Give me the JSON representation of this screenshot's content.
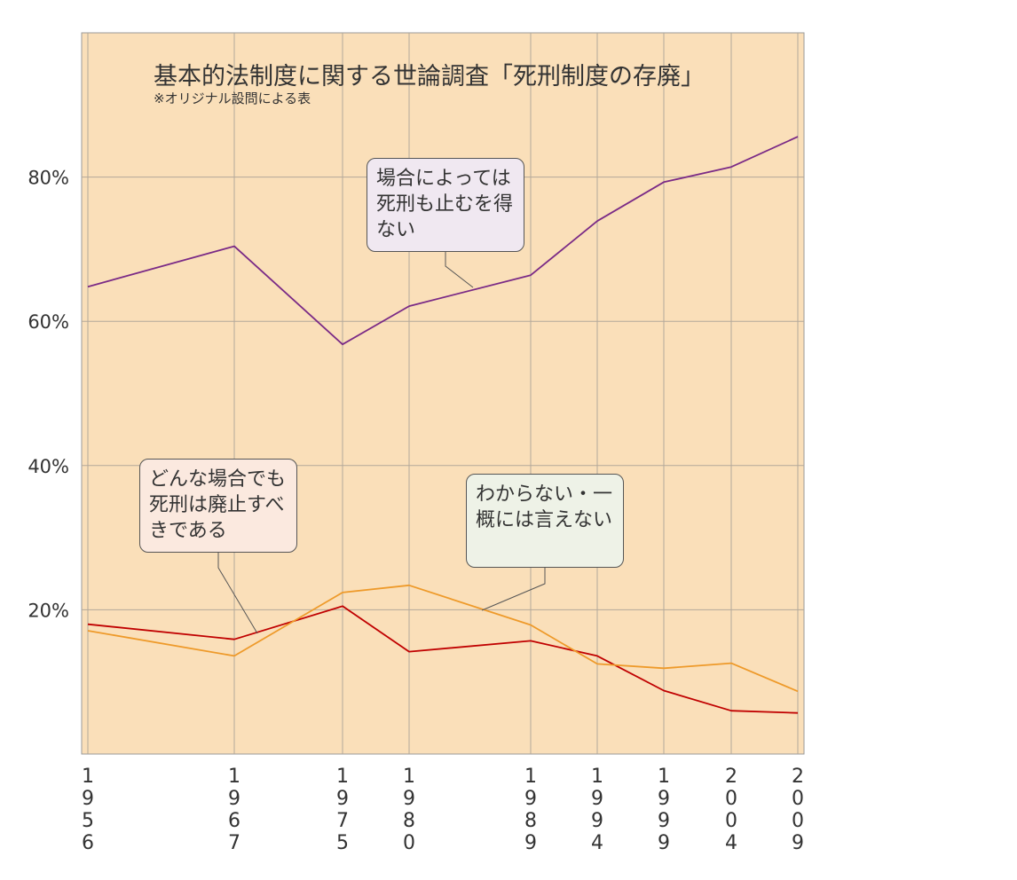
{
  "chart_data": {
    "type": "line",
    "title": "基本的法制度に関する世論調査「死刑制度の存廃」",
    "subtitle": "※オリジナル設問による表",
    "x": [
      "1956",
      "1967",
      "1975",
      "1980",
      "1989",
      "1994",
      "1999",
      "2004",
      "2009"
    ],
    "ylim": [
      0,
      100
    ],
    "yticks": [
      {
        "value": 20,
        "label": "20%"
      },
      {
        "value": 40,
        "label": "40%"
      },
      {
        "value": 60,
        "label": "60%"
      },
      {
        "value": 80,
        "label": "80%"
      }
    ],
    "grid": true,
    "background": "#fadfb9",
    "series": [
      {
        "name": "場合によっては死刑も止むを得ない",
        "color": "#7a2a86",
        "box_color": "#f0e8f1",
        "values": [
          64.8,
          70.4,
          56.8,
          62.1,
          66.4,
          73.9,
          79.3,
          81.4,
          85.6
        ]
      },
      {
        "name": "どんな場合でも死刑は廃止すべきである",
        "color": "#c00000",
        "box_color": "#fbe9df",
        "values": [
          18.0,
          15.9,
          20.5,
          14.2,
          15.7,
          13.6,
          8.8,
          6.0,
          5.7
        ]
      },
      {
        "name": "わからない・一概には言えない",
        "color": "#ee9a2a",
        "box_color": "#eef2e7",
        "values": [
          17.1,
          13.6,
          22.4,
          23.4,
          17.9,
          12.5,
          11.9,
          12.6,
          8.7
        ]
      }
    ]
  }
}
